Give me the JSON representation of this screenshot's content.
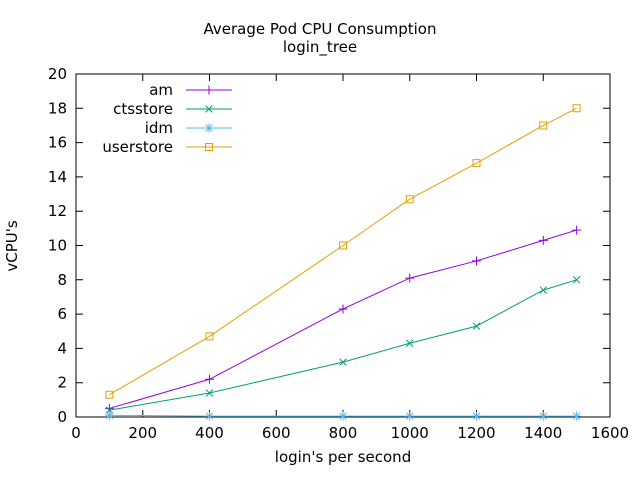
{
  "title": "Average Pod CPU Consumption",
  "subtitle": "login_tree",
  "colors": {
    "background": "#ffffff",
    "axis": "#000000",
    "text": "#000000",
    "am": "#9400d3",
    "ctsstore": "#009e73",
    "idm": "#56b4e9",
    "userstore": "#e69f00"
  },
  "legend": {
    "position": "top-left-inside",
    "entries": [
      {
        "label": "am",
        "marker": "plus"
      },
      {
        "label": "ctsstore",
        "marker": "cross"
      },
      {
        "label": "idm",
        "marker": "asterisk"
      },
      {
        "label": "userstore",
        "marker": "square"
      }
    ]
  },
  "chart_data": {
    "type": "line",
    "title": "Average Pod CPU Consumption",
    "subtitle": "login_tree",
    "xlabel": "login's per second",
    "ylabel": "vCPU's",
    "xlim": [
      0,
      1600
    ],
    "ylim": [
      0,
      20
    ],
    "xticks": [
      0,
      200,
      400,
      600,
      800,
      1000,
      1200,
      1400,
      1600
    ],
    "yticks": [
      0,
      2,
      4,
      6,
      8,
      10,
      12,
      14,
      16,
      18,
      20
    ],
    "grid": false,
    "legend_position": "top-left-inside",
    "x": [
      100,
      400,
      800,
      1000,
      1200,
      1400,
      1500
    ],
    "series": [
      {
        "name": "am",
        "color": "#9400d3",
        "marker": "plus",
        "values": [
          0.5,
          2.2,
          6.3,
          8.1,
          9.1,
          10.3,
          10.9
        ]
      },
      {
        "name": "ctsstore",
        "color": "#009e73",
        "marker": "cross",
        "values": [
          0.4,
          1.4,
          3.2,
          4.3,
          5.3,
          7.4,
          8.0
        ]
      },
      {
        "name": "idm",
        "color": "#56b4e9",
        "marker": "asterisk",
        "values": [
          0.1,
          0.05,
          0.05,
          0.05,
          0.05,
          0.05,
          0.05
        ]
      },
      {
        "name": "userstore",
        "color": "#e69f00",
        "marker": "square",
        "values": [
          1.3,
          4.7,
          10.0,
          12.7,
          14.8,
          17.0,
          18.0
        ]
      }
    ]
  }
}
